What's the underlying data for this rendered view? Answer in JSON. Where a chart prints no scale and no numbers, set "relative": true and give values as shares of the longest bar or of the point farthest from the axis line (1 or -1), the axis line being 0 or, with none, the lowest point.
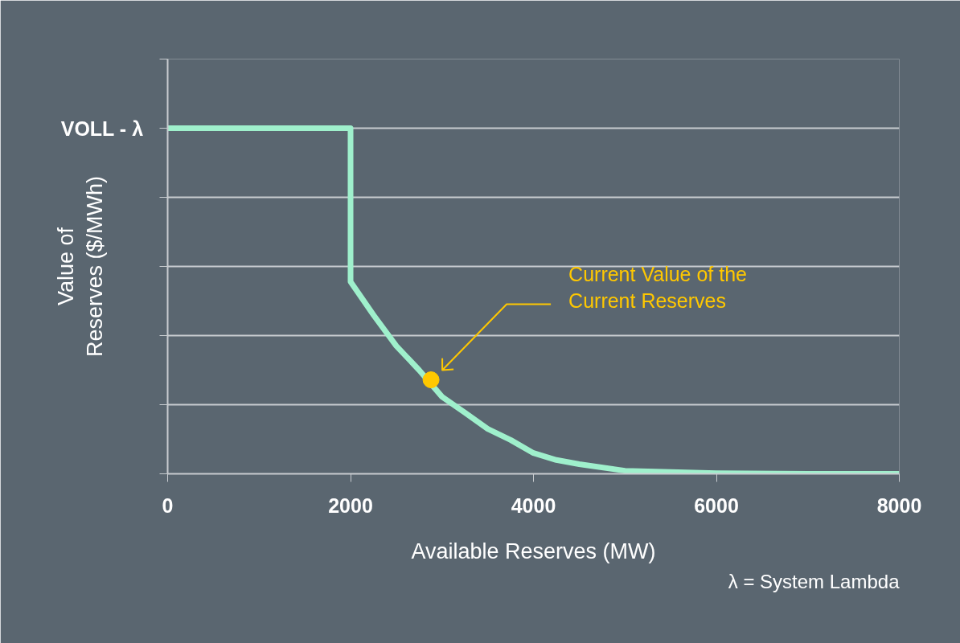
{
  "chart_data": {
    "type": "line",
    "relative": true,
    "xlabel": "Available Reserves (MW)",
    "ylabel": "Value of\nReserves ($/MWh)",
    "xlim": [
      0,
      8000
    ],
    "xticks": [
      0,
      2000,
      4000,
      6000,
      8000
    ],
    "grid": "y",
    "marker": "none",
    "line_style": "solid",
    "series": [
      {
        "color": "#9ff0cc",
        "x": [
          0,
          2000,
          2000,
          2250,
          2500,
          2750,
          3000,
          3250,
          3500,
          3750,
          4000,
          4250,
          4500,
          5000,
          5500,
          6000,
          7000,
          8000
        ],
        "values": [
          1,
          1,
          0.556,
          0.46,
          0.37,
          0.3,
          0.223,
          0.177,
          0.13,
          0.098,
          0.06,
          0.04,
          0.028,
          0.009,
          0.005,
          0.002,
          0,
          0
        ]
      },
      {
        "type": "scatter",
        "color": "#ffc800",
        "x": [
          2880
        ],
        "values": [
          0.272
        ],
        "marker": "circle"
      }
    ],
    "annotations": [
      {
        "text": "VOLL - λ",
        "x": 0,
        "y": 1
      },
      "Current Value of the\nCurrent Reserves",
      "λ = System Lambda"
    ]
  }
}
